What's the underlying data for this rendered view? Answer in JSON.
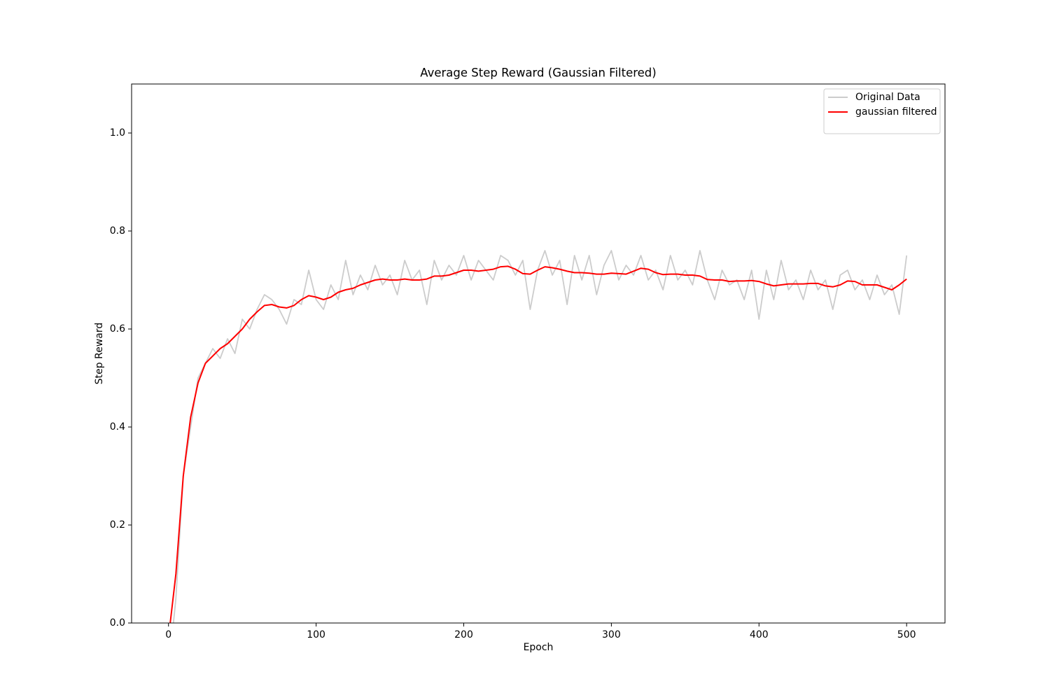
{
  "chart_data": {
    "type": "line",
    "title": "Average Step Reward (Gaussian Filtered)",
    "x_label": "Epoch",
    "y_label": "Step Reward",
    "x": [
      0,
      5,
      10,
      15,
      20,
      25,
      30,
      35,
      40,
      45,
      50,
      55,
      60,
      65,
      70,
      75,
      80,
      85,
      90,
      95,
      100,
      105,
      110,
      115,
      120,
      125,
      130,
      135,
      140,
      145,
      150,
      155,
      160,
      165,
      170,
      175,
      180,
      185,
      190,
      195,
      200,
      205,
      210,
      215,
      220,
      225,
      230,
      235,
      240,
      245,
      250,
      255,
      260,
      265,
      270,
      275,
      280,
      285,
      290,
      295,
      300,
      305,
      310,
      315,
      320,
      325,
      330,
      335,
      340,
      345,
      350,
      355,
      360,
      365,
      370,
      375,
      380,
      385,
      390,
      395,
      400,
      405,
      410,
      415,
      420,
      425,
      430,
      435,
      440,
      445,
      450,
      455,
      460,
      465,
      470,
      475,
      480,
      485,
      490,
      495,
      500
    ],
    "series": [
      {
        "name": "Original Data",
        "color": "#cccccc",
        "values": [
          -0.1,
          0.05,
          0.3,
          0.4,
          0.5,
          0.53,
          0.56,
          0.54,
          0.58,
          0.55,
          0.62,
          0.6,
          0.64,
          0.67,
          0.66,
          0.64,
          0.61,
          0.66,
          0.65,
          0.72,
          0.66,
          0.64,
          0.69,
          0.66,
          0.74,
          0.67,
          0.71,
          0.68,
          0.73,
          0.69,
          0.71,
          0.67,
          0.74,
          0.7,
          0.72,
          0.65,
          0.74,
          0.7,
          0.73,
          0.71,
          0.75,
          0.7,
          0.74,
          0.72,
          0.7,
          0.75,
          0.74,
          0.71,
          0.74,
          0.64,
          0.72,
          0.76,
          0.71,
          0.74,
          0.65,
          0.75,
          0.7,
          0.75,
          0.67,
          0.73,
          0.76,
          0.7,
          0.73,
          0.71,
          0.75,
          0.7,
          0.72,
          0.68,
          0.75,
          0.7,
          0.72,
          0.69,
          0.76,
          0.7,
          0.66,
          0.72,
          0.69,
          0.7,
          0.66,
          0.72,
          0.62,
          0.72,
          0.66,
          0.74,
          0.68,
          0.7,
          0.66,
          0.72,
          0.68,
          0.7,
          0.64,
          0.71,
          0.72,
          0.68,
          0.7,
          0.66,
          0.71,
          0.67,
          0.69,
          0.63,
          0.75
        ]
      },
      {
        "name": "gaussian filtered",
        "color": "#ff0000",
        "values": [
          -0.03,
          0.1,
          0.3,
          0.42,
          0.49,
          0.53,
          0.545,
          0.56,
          0.57,
          0.585,
          0.6,
          0.62,
          0.635,
          0.648,
          0.65,
          0.645,
          0.643,
          0.648,
          0.66,
          0.668,
          0.665,
          0.66,
          0.665,
          0.675,
          0.68,
          0.683,
          0.69,
          0.695,
          0.7,
          0.702,
          0.7,
          0.7,
          0.702,
          0.7,
          0.7,
          0.702,
          0.708,
          0.708,
          0.71,
          0.715,
          0.72,
          0.72,
          0.718,
          0.72,
          0.722,
          0.727,
          0.728,
          0.722,
          0.713,
          0.712,
          0.72,
          0.727,
          0.725,
          0.722,
          0.718,
          0.715,
          0.715,
          0.714,
          0.712,
          0.712,
          0.714,
          0.713,
          0.712,
          0.718,
          0.724,
          0.722,
          0.715,
          0.711,
          0.712,
          0.712,
          0.71,
          0.71,
          0.708,
          0.701,
          0.7,
          0.7,
          0.697,
          0.698,
          0.698,
          0.699,
          0.697,
          0.692,
          0.688,
          0.69,
          0.692,
          0.692,
          0.692,
          0.693,
          0.693,
          0.688,
          0.686,
          0.69,
          0.698,
          0.697,
          0.69,
          0.69,
          0.69,
          0.685,
          0.68,
          0.69,
          0.702
        ]
      }
    ],
    "xlim": [
      -25,
      526
    ],
    "xticks": [
      0,
      100,
      200,
      300,
      400,
      500
    ],
    "ylim": [
      0,
      1.1
    ],
    "yticks": [
      {
        "value": 0,
        "label": "0.0"
      },
      0.2,
      0.4,
      0.6,
      0.8,
      {
        "value": 1,
        "label": "1.0"
      }
    ],
    "grid": false,
    "legend": "upper right"
  }
}
